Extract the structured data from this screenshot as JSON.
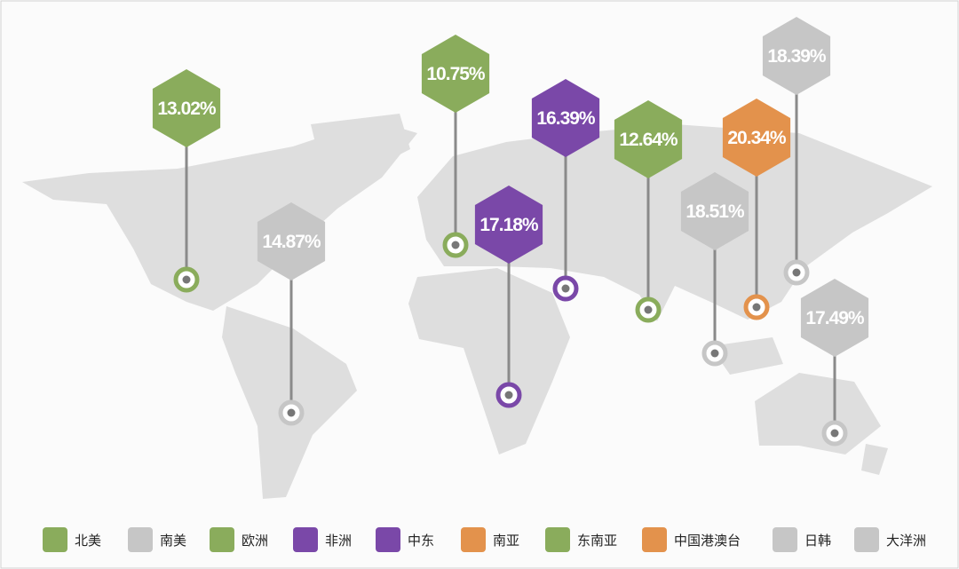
{
  "markers": [
    {
      "label": "13.02%",
      "color": "#8aac5c"
    },
    {
      "label": "14.87%",
      "color": "#c6c6c6"
    },
    {
      "label": "10.75%",
      "color": "#8aac5c"
    },
    {
      "label": "17.18%",
      "color": "#7a48a8"
    },
    {
      "label": "16.39%",
      "color": "#7a48a8"
    },
    {
      "label": "12.64%",
      "color": "#8aac5c"
    },
    {
      "label": "18.51%",
      "color": "#c6c6c6"
    },
    {
      "label": "20.34%",
      "color": "#e3924c"
    },
    {
      "label": "18.39%",
      "color": "#c6c6c6"
    },
    {
      "label": "17.49%",
      "color": "#c6c6c6"
    }
  ],
  "legend": [
    {
      "label": "北美",
      "color": "#8aac5c"
    },
    {
      "label": "南美",
      "color": "#c6c6c6"
    },
    {
      "label": "欧洲",
      "color": "#8aac5c"
    },
    {
      "label": "非洲",
      "color": "#7a48a8"
    },
    {
      "label": "中东",
      "color": "#7a48a8"
    },
    {
      "label": "南亚",
      "color": "#e3924c"
    },
    {
      "label": "东南亚",
      "color": "#8aac5c"
    },
    {
      "label": "中国港澳台",
      "color": "#e3924c"
    },
    {
      "label": "日韩",
      "color": "#c6c6c6"
    },
    {
      "label": "大洋洲",
      "color": "#c6c6c6"
    }
  ]
}
